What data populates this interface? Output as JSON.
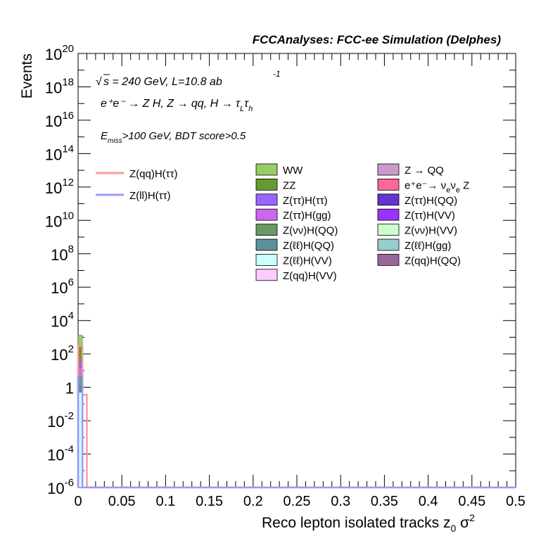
{
  "figure": {
    "title": "FCCAnalyses: FCC-ee Simulation (Delphes)",
    "energy_text": "s = 240 GeV, L=10.8 ab",
    "lumi_exp": "-1",
    "process_text": "e⁺e⁻ → Z H, Z → qq, H → τ",
    "process_sub1": "L",
    "process_tau2": "τ",
    "process_sub2": "h",
    "cut_e": "E",
    "cut_sub": "miss",
    "cut_text": ">100 GeV, BDT score>0.5"
  },
  "chart_data": {
    "type": "bar",
    "stacked": true,
    "log_y": true,
    "xlabel": "Reco lepton isolated tracks z",
    "xlabel_sub": "0",
    "xlabel_tail": "σ",
    "xlabel_sup": "2",
    "ylabel": "Events",
    "xlim": [
      0,
      0.5
    ],
    "ylim": [
      1e-06,
      1e+20
    ],
    "x_ticks": [
      "0",
      "0.05",
      "0.1",
      "0.15",
      "0.2",
      "0.25",
      "0.3",
      "0.35",
      "0.4",
      "0.45",
      "0.5"
    ],
    "y_ticks": [
      {
        "base": "10",
        "exp": "20",
        "value": 1e+20
      },
      {
        "base": "10",
        "exp": "18",
        "value": 1e+18
      },
      {
        "base": "10",
        "exp": "16",
        "value": 1e+16
      },
      {
        "base": "10",
        "exp": "14",
        "value": 100000000000000.0
      },
      {
        "base": "10",
        "exp": "12",
        "value": 1000000000000.0
      },
      {
        "base": "10",
        "exp": "10",
        "value": 10000000000.0
      },
      {
        "base": "10",
        "exp": "8",
        "value": 100000000.0
      },
      {
        "base": "10",
        "exp": "6",
        "value": 1000000.0
      },
      {
        "base": "10",
        "exp": "4",
        "value": 10000.0
      },
      {
        "base": "10",
        "exp": "2",
        "value": 100.0
      },
      {
        "base": "1",
        "exp": "",
        "value": 1
      },
      {
        "base": "10",
        "exp": "-2",
        "value": 0.01
      },
      {
        "base": "10",
        "exp": "-4",
        "value": 0.0001
      },
      {
        "base": "10",
        "exp": "-6",
        "value": 1e-06
      }
    ],
    "bin_width": 0.005,
    "stack": [
      {
        "name": "Z(ℓℓ)H(VV)",
        "color": "#ccffff",
        "values": [
          0.5
        ]
      },
      {
        "name": "Z(ℓℓ)H(QQ)",
        "color": "#5b9199",
        "values": [
          0.5
        ]
      },
      {
        "name": "Z(νν)H(QQ)",
        "color": "#669966",
        "values": [
          4
        ]
      },
      {
        "name": "Z(ττ)H(gg)",
        "color": "#cc66ee",
        "values": [
          10
        ]
      },
      {
        "name": "Z(ττ)H(ττ)",
        "color": "#9966ff",
        "values": [
          20
        ]
      },
      {
        "name": "ZZ",
        "color": "#669933",
        "values": [
          300
        ]
      },
      {
        "name": "WW",
        "color": "#99cc66",
        "values": [
          1000
        ]
      }
    ],
    "signals": [
      {
        "name": "Z(qq)H(ττ)",
        "color": "#ff9999",
        "values": [
          300,
          0.35
        ]
      },
      {
        "name": "Z(ll)H(ττ)",
        "color": "#9999ff",
        "values": [
          5,
          1e-06
        ]
      }
    ],
    "legend_signals": [
      {
        "label": "Z(qq)H(ττ)",
        "color": "#ff9999"
      },
      {
        "label": "Z(ll)H(ττ)",
        "color": "#9999ff"
      }
    ],
    "legend_bkg_col1": [
      {
        "label": "WW",
        "color": "#99cc66"
      },
      {
        "label": "ZZ",
        "color": "#669933"
      },
      {
        "label": "Z(ττ)H(ττ)",
        "color": "#9966ff"
      },
      {
        "label": "Z(ττ)H(gg)",
        "color": "#cc66ee"
      },
      {
        "label": "Z(νν)H(QQ)",
        "color": "#669966"
      },
      {
        "label": "Z(ℓℓ)H(QQ)",
        "color": "#5b9199"
      },
      {
        "label": "Z(ℓℓ)H(VV)",
        "color": "#ccffff"
      },
      {
        "label": "Z(qq)H(VV)",
        "color": "#ffccff"
      }
    ],
    "legend_bkg_col2": [
      {
        "label": "Z → QQ",
        "color": "#cc99cc"
      },
      {
        "label": "e⁺e⁻→ ν",
        "label_sub": "e",
        "label_mid": "ν",
        "label_sub2": "e",
        "label_end": " Z",
        "color": "#ff6699"
      },
      {
        "label": "Z(ττ)H(QQ)",
        "color": "#6633cc"
      },
      {
        "label": "Z(ττ)H(VV)",
        "color": "#9933ff"
      },
      {
        "label": "Z(νν)H(VV)",
        "color": "#ccffcc"
      },
      {
        "label": "Z(ℓℓ)H(gg)",
        "color": "#99cccc"
      },
      {
        "label": "Z(qq)H(QQ)",
        "color": "#996699"
      }
    ]
  }
}
